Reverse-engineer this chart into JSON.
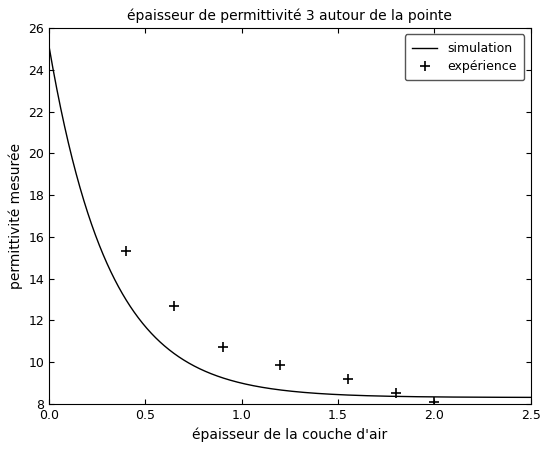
{
  "title": "épaisseur de permittivité 3 autour de la pointe",
  "xlabel": "épaisseur de la couche d'air",
  "ylabel": "permittivité mesurée",
  "xlim": [
    0,
    2.5
  ],
  "ylim": [
    8,
    26
  ],
  "yticks": [
    8,
    10,
    12,
    14,
    16,
    18,
    20,
    22,
    24,
    26
  ],
  "xticks": [
    0,
    0.5,
    1.0,
    1.5,
    2.0,
    2.5
  ],
  "curve_color": "#000000",
  "exp_color": "#000000",
  "exp_x": [
    0.4,
    0.65,
    0.9,
    1.2,
    1.55,
    1.8,
    2.0
  ],
  "exp_y": [
    15.3,
    12.7,
    10.7,
    9.85,
    9.2,
    8.5,
    8.1
  ],
  "sim_params": {
    "asymptote": 8.3,
    "amplitude": 16.8,
    "decay": 3.2
  },
  "legend_labels": [
    "simulation",
    "expérience"
  ],
  "background_color": "#ffffff",
  "title_fontsize": 10,
  "axis_fontsize": 10,
  "tick_labelsize": 9
}
